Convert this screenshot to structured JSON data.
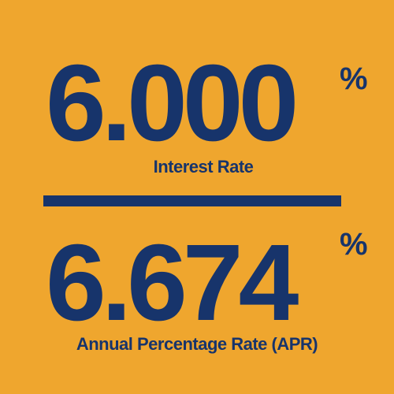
{
  "interest": {
    "value": "6.000",
    "percent_symbol": "%",
    "label": "Interest Rate"
  },
  "apr": {
    "value": "6.674",
    "percent_symbol": "%",
    "label": "Annual Percentage Rate (APR)"
  },
  "colors": {
    "background": "#EFA62E",
    "text": "#17346B",
    "divider": "#17346B"
  }
}
